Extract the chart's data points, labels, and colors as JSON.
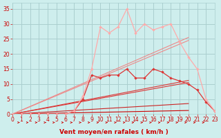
{
  "xlabel": "Vent moyen/en rafales ( km/h )",
  "xlim": [
    0,
    23
  ],
  "ylim": [
    0,
    37
  ],
  "xticks": [
    0,
    1,
    2,
    3,
    4,
    5,
    6,
    7,
    8,
    9,
    10,
    11,
    12,
    13,
    14,
    15,
    16,
    17,
    18,
    19,
    20,
    21,
    22,
    23
  ],
  "yticks": [
    0,
    5,
    10,
    15,
    20,
    25,
    30,
    35
  ],
  "background_color": "#ceeeed",
  "grid_color": "#aacfcf",
  "straight_lines": [
    {
      "x": [
        0,
        20
      ],
      "y": [
        0,
        1.2
      ],
      "color": "#cc0000",
      "lw": 0.8
    },
    {
      "x": [
        0,
        20
      ],
      "y": [
        0,
        3.5
      ],
      "color": "#cc2222",
      "lw": 0.8
    },
    {
      "x": [
        0,
        20
      ],
      "y": [
        0,
        10.5
      ],
      "color": "#dd3333",
      "lw": 0.8
    },
    {
      "x": [
        0,
        20
      ],
      "y": [
        0,
        11.2
      ],
      "color": "#dd3333",
      "lw": 0.8
    },
    {
      "x": [
        0,
        20
      ],
      "y": [
        0,
        24.5
      ],
      "color": "#ee8888",
      "lw": 0.8
    },
    {
      "x": [
        0,
        20
      ],
      "y": [
        0,
        25.5
      ],
      "color": "#ee8888",
      "lw": 0.8
    }
  ],
  "jagged_line1_x": [
    0,
    1,
    2,
    3,
    4,
    5,
    6,
    7,
    8,
    9,
    10,
    11,
    12,
    13,
    14,
    15,
    16,
    17,
    18,
    19,
    20,
    21,
    22,
    23
  ],
  "jagged_line1_y": [
    0,
    0,
    0,
    0,
    0,
    0,
    0,
    1,
    5,
    13,
    12,
    13,
    13,
    15,
    12,
    12,
    15,
    14,
    12,
    11,
    10,
    8,
    4,
    1
  ],
  "jagged_line1_color": "#dd3333",
  "jagged_line2_x": [
    0,
    1,
    2,
    3,
    4,
    5,
    6,
    7,
    8,
    9,
    10,
    11,
    12,
    13,
    14,
    15,
    16,
    17,
    18,
    19,
    20,
    21,
    22,
    23
  ],
  "jagged_line2_y": [
    0,
    0,
    0,
    0,
    0,
    0,
    0,
    1,
    6,
    15,
    29,
    27,
    29,
    35,
    27,
    30,
    28,
    29,
    30,
    24,
    19,
    15,
    5,
    1
  ],
  "jagged_line2_color": "#ffaaaa",
  "arrow_color": "#cc0000",
  "xlabel_color": "#cc0000",
  "tick_color": "#cc0000",
  "tick_fontsize": 5.5,
  "xlabel_fontsize": 6.5
}
